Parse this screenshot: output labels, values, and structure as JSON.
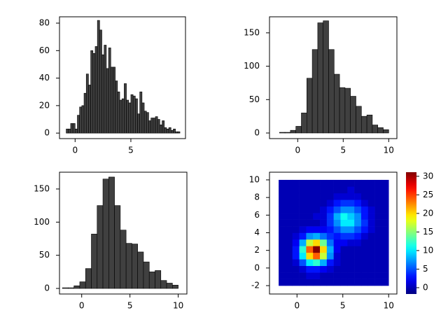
{
  "chart_data": [
    {
      "type": "histogram",
      "bins": [
        -0.8,
        -0.6,
        -0.4,
        -0.2,
        0,
        0.2,
        0.4,
        0.6,
        0.8,
        1,
        1.2,
        1.4,
        1.6,
        1.8,
        2,
        2.2,
        2.4,
        2.6,
        2.8,
        3,
        3.2,
        3.4,
        3.6,
        3.8,
        4,
        4.2,
        4.4,
        4.6,
        4.8,
        5,
        5.2,
        5.4,
        5.6,
        5.8,
        6,
        6.2,
        6.4,
        6.6,
        6.8,
        7,
        7.2,
        7.4,
        7.6,
        7.8,
        8,
        8.2,
        8.4,
        8.6,
        8.8,
        9,
        9.2,
        9.4
      ],
      "values": [
        3,
        3,
        7,
        7,
        3,
        13,
        19,
        20,
        29,
        43,
        35,
        60,
        58,
        63,
        82,
        75,
        57,
        64,
        47,
        62,
        48,
        48,
        38,
        30,
        24,
        25,
        36,
        24,
        22,
        28,
        27,
        25,
        14,
        30,
        22,
        16,
        15,
        9,
        11,
        11,
        12,
        10,
        6,
        9,
        4,
        3,
        4,
        2,
        3,
        1,
        1
      ],
      "color": "#404040",
      "xlim": [
        -1.4,
        9.9
      ],
      "ylim": [
        -4,
        84.6
      ],
      "xticks": [
        0,
        5
      ],
      "yticks": [
        0,
        20,
        40,
        60,
        80
      ]
    },
    {
      "type": "histogram",
      "bins": [
        -2,
        -1.4,
        -0.8,
        -0.2,
        0.4,
        1,
        1.6,
        2.2,
        2.8,
        3.4,
        4,
        4.6,
        5.2,
        5.8,
        6.4,
        7,
        7.6,
        8.2,
        8.8,
        9.4,
        10
      ],
      "values": [
        1,
        1,
        4,
        10,
        30,
        82,
        125,
        165,
        168,
        125,
        88,
        68,
        67,
        55,
        40,
        25,
        27,
        12,
        8,
        5
      ],
      "color": "#404040",
      "xlim": [
        -3.1,
        10.9
      ],
      "ylim": [
        -8.4,
        174
      ],
      "xticks": [
        0,
        5,
        10
      ],
      "yticks": [
        0,
        50,
        100,
        150
      ]
    },
    {
      "type": "histogram",
      "bins": [
        -2,
        -1.4,
        -0.8,
        -0.2,
        0.4,
        1,
        1.6,
        2.2,
        2.8,
        3.4,
        4,
        4.6,
        5.2,
        5.8,
        6.4,
        7,
        7.6,
        8.2,
        8.8,
        9.4,
        10
      ],
      "values": [
        1,
        1,
        4,
        10,
        30,
        82,
        125,
        165,
        168,
        125,
        88,
        68,
        67,
        55,
        40,
        25,
        27,
        12,
        8,
        5
      ],
      "color": "#404040",
      "xlim": [
        -2.3,
        10.9
      ],
      "ylim": [
        -8.4,
        175.3
      ],
      "xticks": [
        0,
        5,
        10
      ],
      "yticks": [
        0,
        50,
        100,
        150
      ]
    },
    {
      "type": "heatmap",
      "x_edges": [
        -2,
        -1.25,
        -0.5,
        0.25,
        1,
        1.75,
        2.5,
        3.25,
        4,
        4.75,
        5.5,
        6.25,
        7,
        7.75,
        8.5,
        9.25,
        10
      ],
      "y_edges": [
        -2,
        -1.25,
        -0.5,
        0.25,
        1,
        1.75,
        2.5,
        3.25,
        4,
        4.75,
        5.5,
        6.25,
        7,
        7.75,
        8.5,
        9.25,
        10
      ],
      "values": [
        [
          0,
          0,
          0,
          0,
          0,
          0,
          0,
          0,
          0,
          0,
          0,
          0,
          0,
          0,
          0,
          0
        ],
        [
          0,
          0,
          0,
          0,
          1,
          1,
          0,
          0,
          0,
          0,
          0,
          0,
          0,
          0,
          0,
          0
        ],
        [
          0,
          0,
          0,
          1,
          3,
          3,
          2,
          1,
          0,
          0,
          0,
          0,
          0,
          0,
          0,
          0
        ],
        [
          0,
          0,
          1,
          5,
          10,
          12,
          8,
          3,
          1,
          0,
          0,
          0,
          0,
          0,
          0,
          0
        ],
        [
          0,
          0,
          3,
          10,
          20,
          24,
          17,
          7,
          1,
          0,
          0,
          0,
          0,
          0,
          0,
          0
        ],
        [
          0,
          0,
          3,
          12,
          24,
          31,
          20,
          8,
          2,
          0,
          0,
          0,
          0,
          0,
          0,
          0
        ],
        [
          0,
          0,
          2,
          8,
          17,
          20,
          14,
          6,
          2,
          2,
          1,
          1,
          0,
          0,
          0,
          0
        ],
        [
          0,
          0,
          1,
          3,
          7,
          8,
          6,
          4,
          3,
          4,
          4,
          3,
          1,
          0,
          0,
          0
        ],
        [
          0,
          0,
          0,
          1,
          2,
          2,
          2,
          3,
          5,
          7,
          7,
          5,
          3,
          1,
          0,
          0
        ],
        [
          0,
          0,
          0,
          0,
          0,
          0,
          1,
          4,
          7,
          10,
          10,
          7,
          4,
          1,
          0,
          0
        ],
        [
          0,
          0,
          0,
          0,
          0,
          1,
          1,
          4,
          8,
          11,
          9,
          7,
          3,
          1,
          0,
          0
        ],
        [
          0,
          0,
          0,
          0,
          0,
          0,
          1,
          3,
          5,
          7,
          7,
          5,
          3,
          1,
          0,
          0
        ],
        [
          0,
          0,
          0,
          0,
          0,
          0,
          0,
          1,
          3,
          4,
          4,
          3,
          1,
          0,
          0,
          0
        ],
        [
          0,
          0,
          0,
          0,
          0,
          0,
          0,
          0,
          1,
          1,
          1,
          1,
          0,
          0,
          0,
          0
        ],
        [
          0,
          0,
          0,
          0,
          0,
          0,
          0,
          0,
          0,
          0,
          1,
          0,
          0,
          0,
          0,
          0
        ],
        [
          0,
          0,
          0,
          0,
          0,
          0,
          0,
          0,
          0,
          0,
          0,
          0,
          0,
          0,
          0,
          0
        ]
      ],
      "colormap": "jet",
      "clim": [
        -1.7,
        31.1
      ],
      "cticks": [
        0,
        5,
        10,
        15,
        20,
        25,
        30
      ],
      "xlim": [
        -3,
        10.9
      ],
      "ylim": [
        -2.95,
        10.87
      ],
      "xticks": [
        0,
        5,
        10
      ],
      "yticks": [
        -2,
        0,
        2,
        4,
        6,
        8,
        10
      ]
    }
  ]
}
